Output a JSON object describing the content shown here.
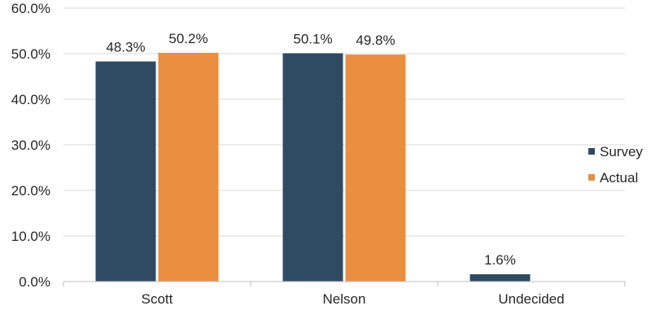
{
  "chart_data": {
    "type": "bar",
    "categories": [
      "Scott",
      "Nelson",
      "Undecided"
    ],
    "series": [
      {
        "name": "Survey",
        "values": [
          48.3,
          50.1,
          1.6
        ],
        "labels": [
          "48.3%",
          "50.1%",
          "1.6%"
        ],
        "color": "#2f4a63"
      },
      {
        "name": "Actual",
        "values": [
          50.2,
          49.8,
          null
        ],
        "labels": [
          "50.2%",
          "49.8%",
          ""
        ],
        "color": "#e98f3f"
      }
    ],
    "ylim": [
      0,
      60
    ],
    "yticks": [
      0,
      10,
      20,
      30,
      40,
      50,
      60
    ],
    "ytick_labels": [
      "0.0%",
      "10.0%",
      "20.0%",
      "30.0%",
      "40.0%",
      "50.0%",
      "60.0%"
    ],
    "grid": true,
    "legend": "right",
    "title": "",
    "xlabel": "",
    "ylabel": ""
  },
  "colors": {
    "grid": "#d9d9d9",
    "axis": "#bfbfbf",
    "text": "#262626"
  }
}
